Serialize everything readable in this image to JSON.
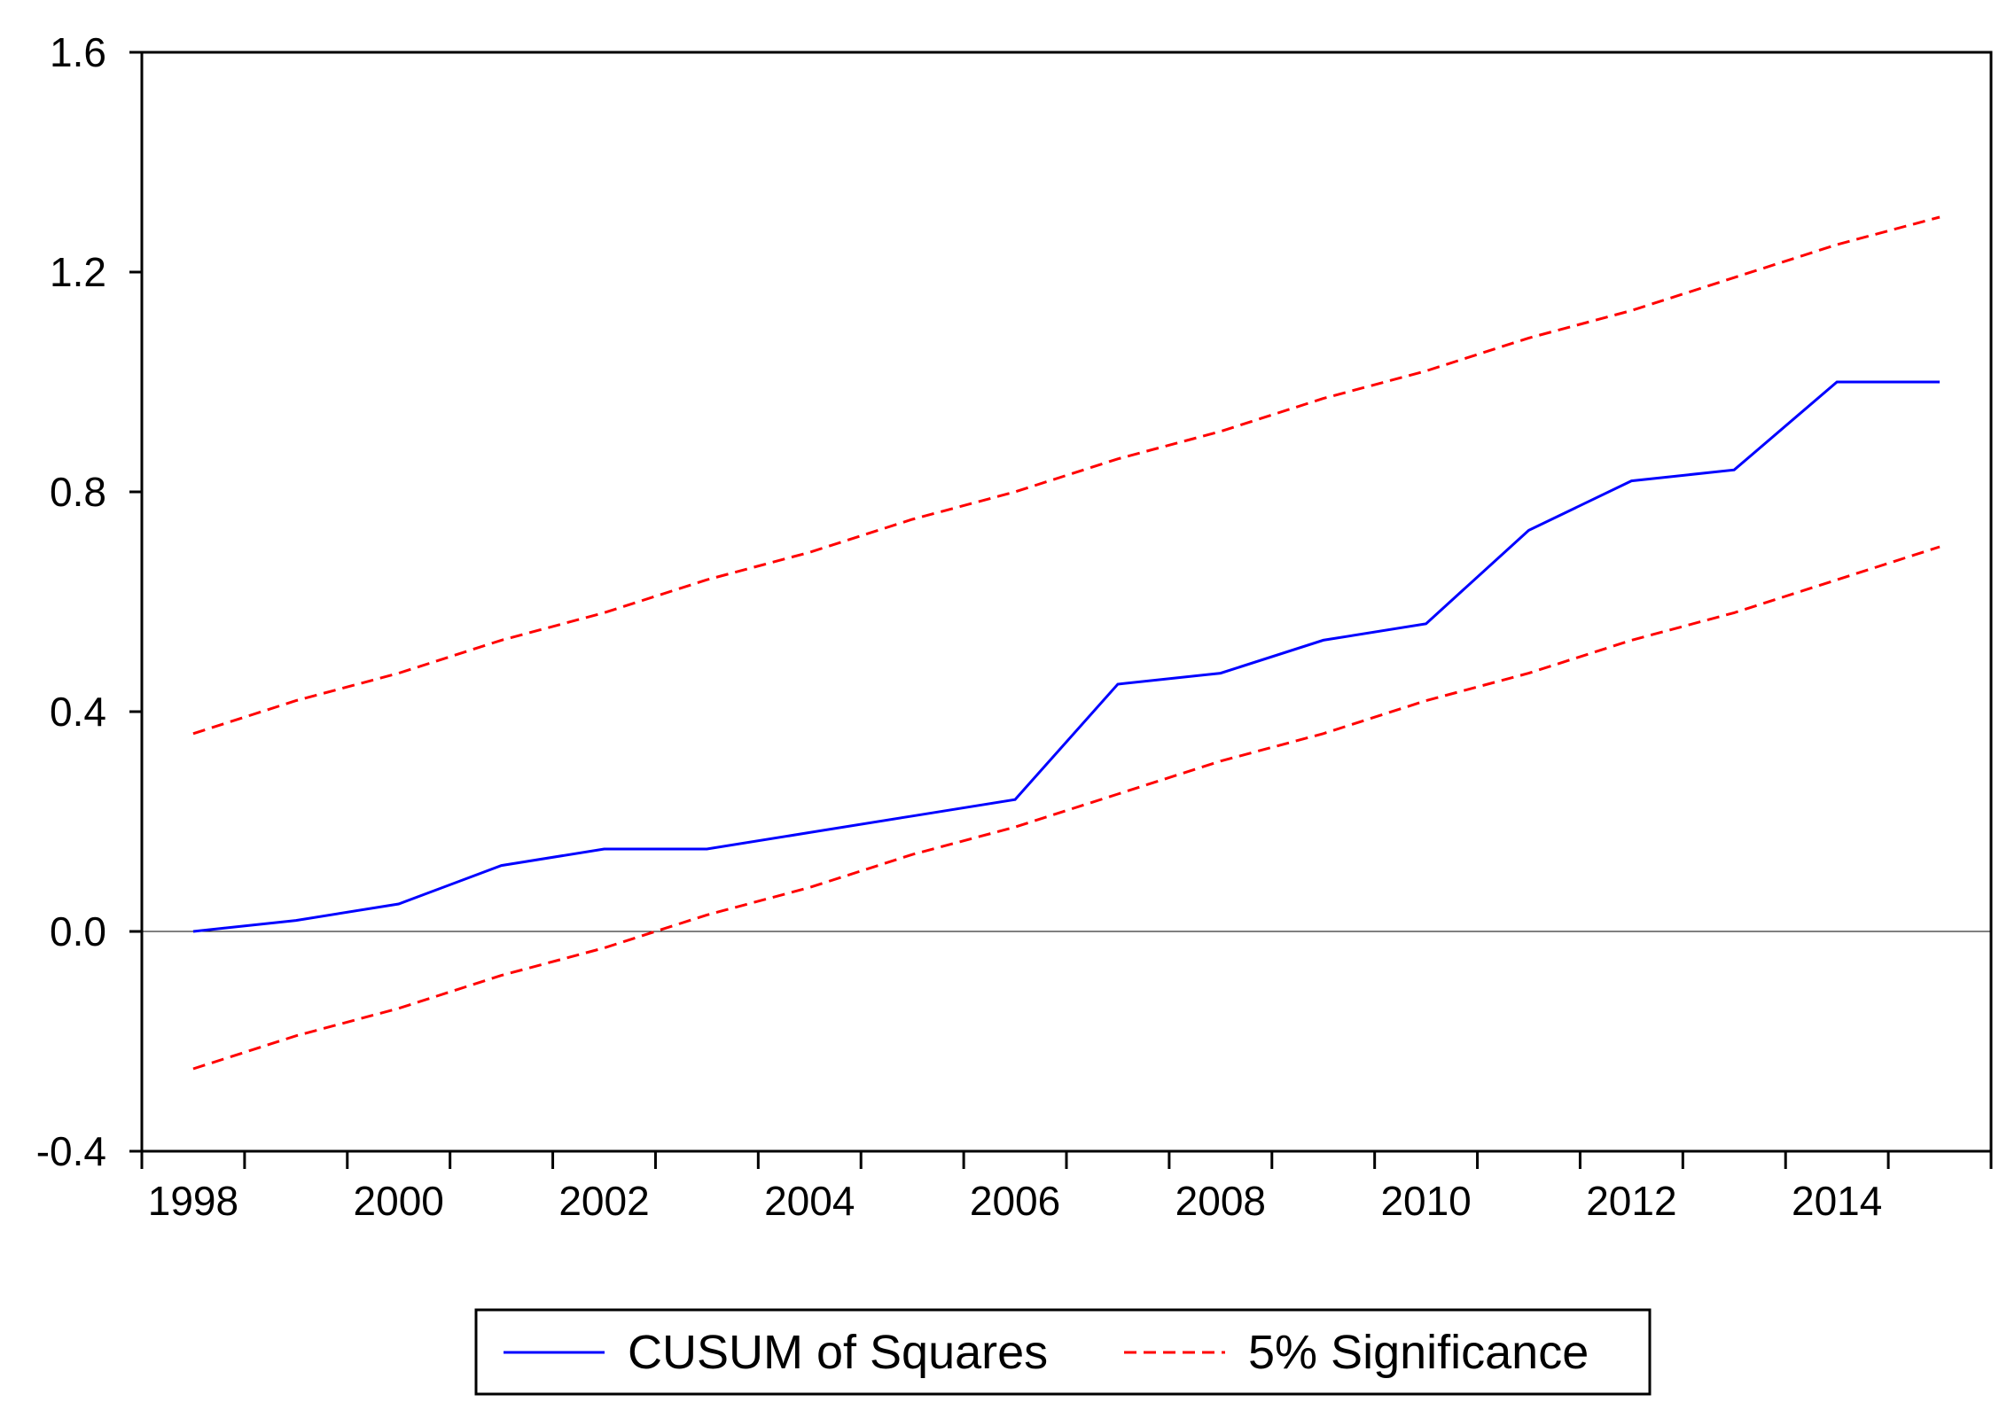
{
  "chart_data": {
    "type": "line",
    "title": "",
    "xlabel": "",
    "ylabel": "",
    "xlim": [
      1997.5,
      2015.5
    ],
    "ylim": [
      -0.4,
      1.6
    ],
    "x_ticks": [
      1998,
      2000,
      2002,
      2004,
      2006,
      2008,
      2010,
      2012,
      2014
    ],
    "x_tick_labels": [
      "1998",
      "2000",
      "2002",
      "2004",
      "2006",
      "2008",
      "2010",
      "2012",
      "2014"
    ],
    "y_ticks": [
      -0.4,
      0.0,
      0.4,
      0.8,
      1.2,
      1.6
    ],
    "y_tick_labels": [
      "-0.4",
      "0.0",
      "0.4",
      "0.8",
      "1.2",
      "1.6"
    ],
    "x": [
      1998,
      1999,
      2000,
      2001,
      2002,
      2003,
      2004,
      2005,
      2006,
      2007,
      2008,
      2009,
      2010,
      2011,
      2012,
      2013,
      2014,
      2015
    ],
    "series": [
      {
        "name": "CUSUM of Squares",
        "color": "#0000ff",
        "style": "solid",
        "values": [
          0.0,
          0.02,
          0.05,
          0.12,
          0.15,
          0.15,
          0.18,
          0.21,
          0.24,
          0.45,
          0.47,
          0.53,
          0.56,
          0.73,
          0.82,
          0.84,
          1.0,
          1.0
        ]
      },
      {
        "name": "5% Significance",
        "color": "#ff0000",
        "style": "dashed",
        "values": [
          0.36,
          0.42,
          0.47,
          0.53,
          0.58,
          0.64,
          0.69,
          0.75,
          0.8,
          0.86,
          0.91,
          0.97,
          1.02,
          1.08,
          1.13,
          1.19,
          1.25,
          1.3
        ]
      },
      {
        "name": "",
        "color": "#ff0000",
        "style": "dashed",
        "values": [
          -0.25,
          -0.19,
          -0.14,
          -0.08,
          -0.03,
          0.03,
          0.08,
          0.14,
          0.19,
          0.25,
          0.31,
          0.36,
          0.42,
          0.47,
          0.53,
          0.58,
          0.64,
          0.7
        ]
      }
    ],
    "zero_line": true,
    "grid": false,
    "legend_position": "bottom-center",
    "legend": [
      {
        "label": "CUSUM of Squares",
        "color": "#0000ff",
        "style": "solid"
      },
      {
        "label": "5% Significance",
        "color": "#ff0000",
        "style": "dashed"
      }
    ]
  }
}
